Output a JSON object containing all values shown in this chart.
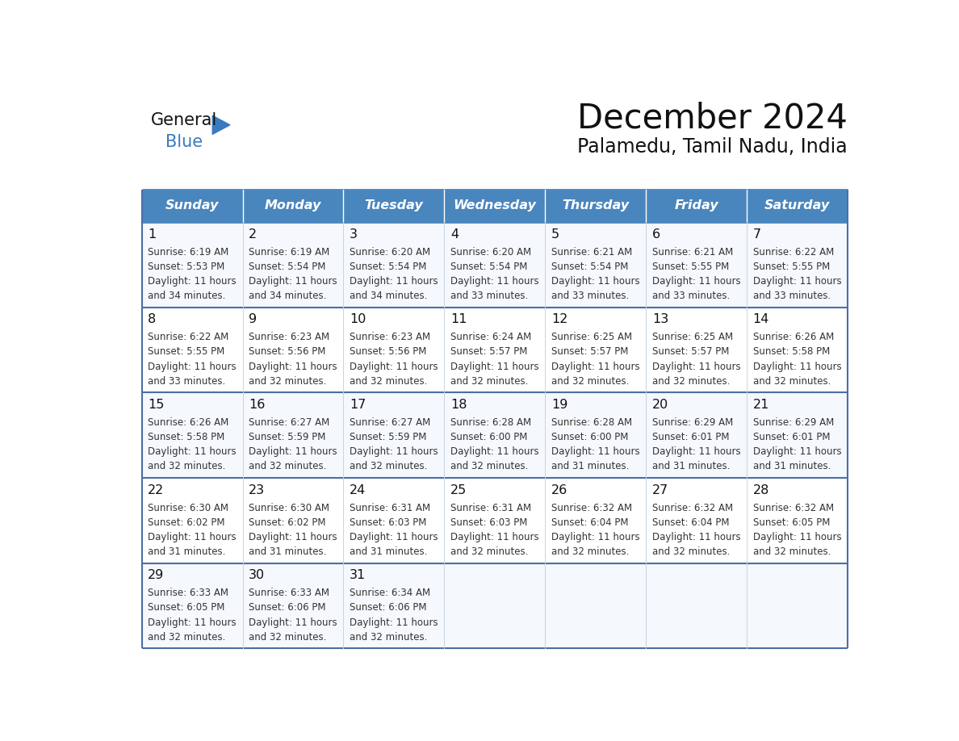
{
  "title": "December 2024",
  "subtitle": "Palamedu, Tamil Nadu, India",
  "header_color": "#4a86be",
  "header_text_color": "#ffffff",
  "row_line_color": "#4a6fa5",
  "day_names": [
    "Sunday",
    "Monday",
    "Tuesday",
    "Wednesday",
    "Thursday",
    "Friday",
    "Saturday"
  ],
  "days": [
    {
      "date": 1,
      "col": 0,
      "row": 0,
      "sunrise": "6:19 AM",
      "sunset": "5:53 PM",
      "daylight_h": "11 hours",
      "daylight_m": "and 34 minutes."
    },
    {
      "date": 2,
      "col": 1,
      "row": 0,
      "sunrise": "6:19 AM",
      "sunset": "5:54 PM",
      "daylight_h": "11 hours",
      "daylight_m": "and 34 minutes."
    },
    {
      "date": 3,
      "col": 2,
      "row": 0,
      "sunrise": "6:20 AM",
      "sunset": "5:54 PM",
      "daylight_h": "11 hours",
      "daylight_m": "and 34 minutes."
    },
    {
      "date": 4,
      "col": 3,
      "row": 0,
      "sunrise": "6:20 AM",
      "sunset": "5:54 PM",
      "daylight_h": "11 hours",
      "daylight_m": "and 33 minutes."
    },
    {
      "date": 5,
      "col": 4,
      "row": 0,
      "sunrise": "6:21 AM",
      "sunset": "5:54 PM",
      "daylight_h": "11 hours",
      "daylight_m": "and 33 minutes."
    },
    {
      "date": 6,
      "col": 5,
      "row": 0,
      "sunrise": "6:21 AM",
      "sunset": "5:55 PM",
      "daylight_h": "11 hours",
      "daylight_m": "and 33 minutes."
    },
    {
      "date": 7,
      "col": 6,
      "row": 0,
      "sunrise": "6:22 AM",
      "sunset": "5:55 PM",
      "daylight_h": "11 hours",
      "daylight_m": "and 33 minutes."
    },
    {
      "date": 8,
      "col": 0,
      "row": 1,
      "sunrise": "6:22 AM",
      "sunset": "5:55 PM",
      "daylight_h": "11 hours",
      "daylight_m": "and 33 minutes."
    },
    {
      "date": 9,
      "col": 1,
      "row": 1,
      "sunrise": "6:23 AM",
      "sunset": "5:56 PM",
      "daylight_h": "11 hours",
      "daylight_m": "and 32 minutes."
    },
    {
      "date": 10,
      "col": 2,
      "row": 1,
      "sunrise": "6:23 AM",
      "sunset": "5:56 PM",
      "daylight_h": "11 hours",
      "daylight_m": "and 32 minutes."
    },
    {
      "date": 11,
      "col": 3,
      "row": 1,
      "sunrise": "6:24 AM",
      "sunset": "5:57 PM",
      "daylight_h": "11 hours",
      "daylight_m": "and 32 minutes."
    },
    {
      "date": 12,
      "col": 4,
      "row": 1,
      "sunrise": "6:25 AM",
      "sunset": "5:57 PM",
      "daylight_h": "11 hours",
      "daylight_m": "and 32 minutes."
    },
    {
      "date": 13,
      "col": 5,
      "row": 1,
      "sunrise": "6:25 AM",
      "sunset": "5:57 PM",
      "daylight_h": "11 hours",
      "daylight_m": "and 32 minutes."
    },
    {
      "date": 14,
      "col": 6,
      "row": 1,
      "sunrise": "6:26 AM",
      "sunset": "5:58 PM",
      "daylight_h": "11 hours",
      "daylight_m": "and 32 minutes."
    },
    {
      "date": 15,
      "col": 0,
      "row": 2,
      "sunrise": "6:26 AM",
      "sunset": "5:58 PM",
      "daylight_h": "11 hours",
      "daylight_m": "and 32 minutes."
    },
    {
      "date": 16,
      "col": 1,
      "row": 2,
      "sunrise": "6:27 AM",
      "sunset": "5:59 PM",
      "daylight_h": "11 hours",
      "daylight_m": "and 32 minutes."
    },
    {
      "date": 17,
      "col": 2,
      "row": 2,
      "sunrise": "6:27 AM",
      "sunset": "5:59 PM",
      "daylight_h": "11 hours",
      "daylight_m": "and 32 minutes."
    },
    {
      "date": 18,
      "col": 3,
      "row": 2,
      "sunrise": "6:28 AM",
      "sunset": "6:00 PM",
      "daylight_h": "11 hours",
      "daylight_m": "and 32 minutes."
    },
    {
      "date": 19,
      "col": 4,
      "row": 2,
      "sunrise": "6:28 AM",
      "sunset": "6:00 PM",
      "daylight_h": "11 hours",
      "daylight_m": "and 31 minutes."
    },
    {
      "date": 20,
      "col": 5,
      "row": 2,
      "sunrise": "6:29 AM",
      "sunset": "6:01 PM",
      "daylight_h": "11 hours",
      "daylight_m": "and 31 minutes."
    },
    {
      "date": 21,
      "col": 6,
      "row": 2,
      "sunrise": "6:29 AM",
      "sunset": "6:01 PM",
      "daylight_h": "11 hours",
      "daylight_m": "and 31 minutes."
    },
    {
      "date": 22,
      "col": 0,
      "row": 3,
      "sunrise": "6:30 AM",
      "sunset": "6:02 PM",
      "daylight_h": "11 hours",
      "daylight_m": "and 31 minutes."
    },
    {
      "date": 23,
      "col": 1,
      "row": 3,
      "sunrise": "6:30 AM",
      "sunset": "6:02 PM",
      "daylight_h": "11 hours",
      "daylight_m": "and 31 minutes."
    },
    {
      "date": 24,
      "col": 2,
      "row": 3,
      "sunrise": "6:31 AM",
      "sunset": "6:03 PM",
      "daylight_h": "11 hours",
      "daylight_m": "and 31 minutes."
    },
    {
      "date": 25,
      "col": 3,
      "row": 3,
      "sunrise": "6:31 AM",
      "sunset": "6:03 PM",
      "daylight_h": "11 hours",
      "daylight_m": "and 32 minutes."
    },
    {
      "date": 26,
      "col": 4,
      "row": 3,
      "sunrise": "6:32 AM",
      "sunset": "6:04 PM",
      "daylight_h": "11 hours",
      "daylight_m": "and 32 minutes."
    },
    {
      "date": 27,
      "col": 5,
      "row": 3,
      "sunrise": "6:32 AM",
      "sunset": "6:04 PM",
      "daylight_h": "11 hours",
      "daylight_m": "and 32 minutes."
    },
    {
      "date": 28,
      "col": 6,
      "row": 3,
      "sunrise": "6:32 AM",
      "sunset": "6:05 PM",
      "daylight_h": "11 hours",
      "daylight_m": "and 32 minutes."
    },
    {
      "date": 29,
      "col": 0,
      "row": 4,
      "sunrise": "6:33 AM",
      "sunset": "6:05 PM",
      "daylight_h": "11 hours",
      "daylight_m": "and 32 minutes."
    },
    {
      "date": 30,
      "col": 1,
      "row": 4,
      "sunrise": "6:33 AM",
      "sunset": "6:06 PM",
      "daylight_h": "11 hours",
      "daylight_m": "and 32 minutes."
    },
    {
      "date": 31,
      "col": 2,
      "row": 4,
      "sunrise": "6:34 AM",
      "sunset": "6:06 PM",
      "daylight_h": "11 hours",
      "daylight_m": "and 32 minutes."
    }
  ],
  "num_rows": 5,
  "num_cols": 7
}
